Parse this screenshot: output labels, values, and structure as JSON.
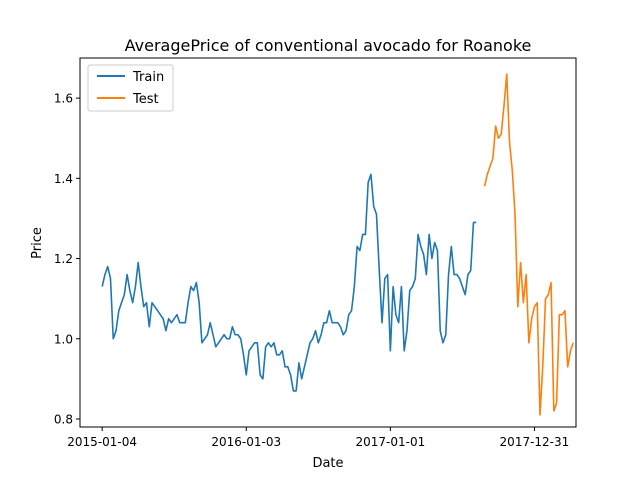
{
  "chart_data": {
    "type": "line",
    "title": "AveragePrice of conventional avocado for Roanoke",
    "xlabel": "Date",
    "ylabel": "Price",
    "x_ticks": [
      {
        "date": "2015-01-04",
        "label": "2015-01-04"
      },
      {
        "date": "2016-01-03",
        "label": "2016-01-03"
      },
      {
        "date": "2017-01-01",
        "label": "2017-01-01"
      },
      {
        "date": "2017-12-31",
        "label": "2017-12-31"
      }
    ],
    "y_ticks": [
      0.8,
      1.0,
      1.2,
      1.4,
      1.6
    ],
    "y_tick_labels": [
      "0.8",
      "1.0",
      "1.2",
      "1.4",
      "1.6"
    ],
    "xlim": [
      "2014-11-09",
      "2018-04-15"
    ],
    "ylim": [
      0.78,
      1.7
    ],
    "grid": false,
    "legend_position": "top-left",
    "series": [
      {
        "name": "Train",
        "color": "#1f77b4",
        "start_date": "2015-01-04",
        "freq": "weekly",
        "values": [
          1.13,
          1.16,
          1.18,
          1.15,
          1.0,
          1.02,
          1.07,
          1.09,
          1.11,
          1.16,
          1.12,
          1.09,
          1.13,
          1.19,
          1.13,
          1.08,
          1.09,
          1.03,
          1.09,
          1.08,
          1.07,
          1.06,
          1.05,
          1.02,
          1.05,
          1.04,
          1.05,
          1.06,
          1.04,
          1.04,
          1.04,
          1.09,
          1.13,
          1.12,
          1.14,
          1.09,
          0.99,
          1.0,
          1.01,
          1.04,
          1.01,
          0.98,
          0.99,
          1.0,
          1.01,
          1.0,
          1.0,
          1.03,
          1.01,
          1.01,
          1.0,
          0.96,
          0.91,
          0.97,
          0.98,
          0.99,
          0.99,
          0.91,
          0.9,
          0.98,
          0.99,
          0.98,
          0.99,
          0.96,
          0.96,
          0.97,
          0.93,
          0.93,
          0.91,
          0.87,
          0.87,
          0.94,
          0.9,
          0.93,
          0.96,
          0.99,
          1.0,
          1.02,
          0.99,
          1.01,
          1.04,
          1.04,
          1.07,
          1.04,
          1.04,
          1.04,
          1.03,
          1.01,
          1.02,
          1.06,
          1.07,
          1.13,
          1.23,
          1.22,
          1.26,
          1.26,
          1.39,
          1.41,
          1.33,
          1.31,
          1.17,
          1.04,
          1.15,
          1.16,
          0.97,
          1.13,
          1.06,
          1.04,
          1.13,
          0.97,
          1.02,
          1.12,
          1.13,
          1.15,
          1.26,
          1.23,
          1.21,
          1.16,
          1.26,
          1.2,
          1.24,
          1.22,
          1.02,
          0.99,
          1.01,
          1.16,
          1.23,
          1.16,
          1.16,
          1.15,
          1.13,
          1.11,
          1.16,
          1.17,
          1.29,
          1.29
        ]
      },
      {
        "name": "Test",
        "color": "#ff7f0e",
        "start_date": "2017-08-27",
        "freq": "weekly",
        "values": [
          1.38,
          1.41,
          1.43,
          1.45,
          1.53,
          1.5,
          1.51,
          1.58,
          1.66,
          1.49,
          1.42,
          1.31,
          1.08,
          1.19,
          1.09,
          1.16,
          0.99,
          1.05,
          1.08,
          1.09,
          0.81,
          0.93,
          1.1,
          1.11,
          1.14,
          0.82,
          0.84,
          1.06,
          1.06,
          1.07,
          0.93,
          0.97,
          0.99
        ]
      }
    ]
  }
}
